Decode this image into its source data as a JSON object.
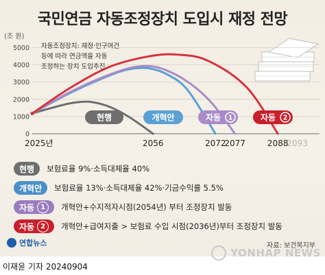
{
  "title": "국민연금 자동조정장치 도입시 재정 전망",
  "chart_data": {
    "type": "line",
    "unit_label": "(조 원)",
    "y_ticks": [
      0,
      1000,
      2000,
      3000,
      4000,
      5000
    ],
    "ylim": [
      0,
      5300
    ],
    "xlim": [
      2025,
      2095
    ],
    "x_labels": [
      {
        "value": 2025,
        "label": "2025년",
        "color": "#222222"
      },
      {
        "value": 2056,
        "label": "2056",
        "color": "#222222"
      },
      {
        "value": 2072,
        "label": "2072",
        "color": "#222222"
      },
      {
        "value": 2077,
        "label": "2077",
        "color": "#222222"
      },
      {
        "value": 2088,
        "label": "2088",
        "color": "#222222"
      },
      {
        "value": 2093,
        "label": "2093",
        "color": "#b5b5b5"
      }
    ],
    "series": [
      {
        "name": "현행",
        "color": "#6e6e6e",
        "points": [
          [
            2025,
            1180
          ],
          [
            2030,
            1500
          ],
          [
            2035,
            1780
          ],
          [
            2040,
            1850
          ],
          [
            2045,
            1550
          ],
          [
            2050,
            950
          ],
          [
            2056,
            0
          ]
        ]
      },
      {
        "name": "개혁안",
        "color": "#5aa0d5",
        "points": [
          [
            2025,
            1180
          ],
          [
            2035,
            2400
          ],
          [
            2045,
            3400
          ],
          [
            2050,
            3750
          ],
          [
            2055,
            3800
          ],
          [
            2060,
            3400
          ],
          [
            2065,
            2500
          ],
          [
            2072,
            0
          ]
        ]
      },
      {
        "name": "자동①",
        "color": "#a98bc8",
        "points": [
          [
            2025,
            1180
          ],
          [
            2035,
            2450
          ],
          [
            2045,
            3450
          ],
          [
            2052,
            3900
          ],
          [
            2058,
            3800
          ],
          [
            2065,
            3000
          ],
          [
            2071,
            1800
          ],
          [
            2077,
            0
          ]
        ]
      },
      {
        "name": "자동②",
        "color": "#d6323c",
        "points": [
          [
            2025,
            1180
          ],
          [
            2035,
            2700
          ],
          [
            2045,
            3900
          ],
          [
            2055,
            4500
          ],
          [
            2062,
            4600
          ],
          [
            2070,
            4250
          ],
          [
            2080,
            2700
          ],
          [
            2088,
            0
          ]
        ]
      }
    ],
    "curve_tags": [
      {
        "text": "현행",
        "color": "#6e6e6e"
      },
      {
        "text": "개혁안",
        "color": "#5aa0d5"
      },
      {
        "text": "자동",
        "num": "1",
        "color": "#a98bc8"
      },
      {
        "text": "자동",
        "num": "2",
        "color": "#c8202c"
      }
    ]
  },
  "note_lines": [
    "자동조정장치: 재정·인구여건",
    "등에 따라 연금액을 자동",
    "조정하는 장치 도입추진"
  ],
  "legend": [
    {
      "tag": "현행",
      "num": "",
      "color": "#6e6e6e",
      "text": "보험료율 9%·소득대체율 40%"
    },
    {
      "tag": "개혁안",
      "num": "",
      "color": "#4a90c8",
      "text": "보험료율 13%·소득대체율 42%·기금수익률 5.5%"
    },
    {
      "tag": "자동",
      "num": "1",
      "color": "#9b7cc0",
      "text": "개혁안+수지적자시점(2054년) 부터 조정장치 발동"
    },
    {
      "tag": "자동",
      "num": "2",
      "color": "#c8202c",
      "text": "개혁안+급여지출 > 보험료 수입 시점(2036년)부터 조정장치 발동"
    }
  ],
  "logo_text": "연합뉴스",
  "source": "자료: 보건복지부",
  "credit": "이재윤 기자  20240904",
  "watermark": "YONHAP NEWS"
}
